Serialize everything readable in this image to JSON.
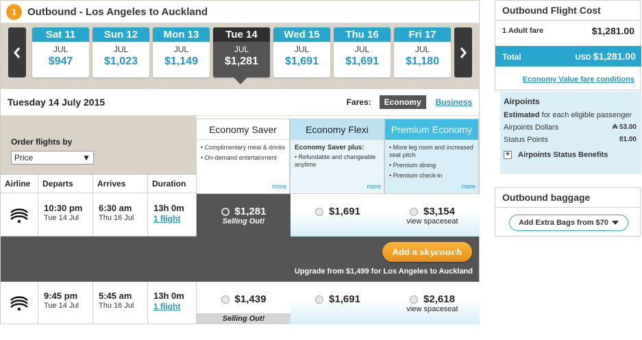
{
  "header": {
    "step": "1",
    "title": "Outbound - Los Angeles to Auckland"
  },
  "dates": [
    {
      "day": "Sat 11",
      "month": "JUL",
      "price": "$947"
    },
    {
      "day": "Sun 12",
      "month": "JUL",
      "price": "$1,023"
    },
    {
      "day": "Mon 13",
      "month": "JUL",
      "price": "$1,149"
    },
    {
      "day": "Tue 14",
      "month": "JUL",
      "price": "$1,281"
    },
    {
      "day": "Wed 15",
      "month": "JUL",
      "price": "$1,691"
    },
    {
      "day": "Thu 16",
      "month": "JUL",
      "price": "$1,691"
    },
    {
      "day": "Fri 17",
      "month": "JUL",
      "price": "$1,180"
    }
  ],
  "selected_date": "Tuesday 14 July 2015",
  "fares_label": "Fares:",
  "fares_economy": "Economy",
  "fares_business": "Business",
  "order": {
    "label": "Order flights by",
    "value": "Price"
  },
  "columns": {
    "airline": "Airline",
    "departs": "Departs",
    "arrives": "Arrives",
    "duration": "Duration"
  },
  "fare_types": [
    {
      "name": "Economy Saver",
      "plus": "",
      "items": [
        "Complimentary meal & drinks",
        "On-demand entertainment"
      ],
      "more": "more"
    },
    {
      "name": "Economy Flexi",
      "plus": "Economy Saver plus:",
      "items": [
        "Refundable and changeable anytime"
      ],
      "more": "more"
    },
    {
      "name": "Premium Economy",
      "plus": "",
      "items": [
        "More leg room and increased seat pitch",
        "Premium dining",
        "Premium check-in"
      ],
      "more": "more"
    }
  ],
  "flights": [
    {
      "depart_time": "10:30 pm",
      "depart_date": "Tue 14 Jul",
      "arrive_time": "6:30 am",
      "arrive_date": "Thu 16 Jul",
      "duration": "13h 0m",
      "flights": "1 flight",
      "saver": {
        "price": "$1,281",
        "note": "Selling Out!"
      },
      "flexi": {
        "price": "$1,691"
      },
      "premium": {
        "price": "$3,154",
        "note": "view spaceseat"
      }
    },
    {
      "depart_time": "9:45 pm",
      "depart_date": "Tue 14 Jul",
      "arrive_time": "5:45 am",
      "arrive_date": "Thu 16 Jul",
      "duration": "13h 0m",
      "flights": "1 flight",
      "saver": {
        "price": "$1,439",
        "note": "Selling Out!"
      },
      "flexi": {
        "price": "$1,691"
      },
      "premium": {
        "price": "$2,618",
        "note": "view spaceseat"
      }
    }
  ],
  "upsell": {
    "button_prefix": "Add a",
    "button_brand": "skycouch",
    "text": "Upgrade from $1,499 for Los Angeles to Auckland"
  },
  "cost": {
    "title": "Outbound Flight Cost",
    "adult_label": "1 Adult fare",
    "adult_amount": "$1,281.00",
    "total_label": "Total",
    "currency": "USD",
    "total_amount": "$1,281.00",
    "conditions": "Economy Value fare conditions"
  },
  "airpoints": {
    "title": "Airpoints",
    "est_bold": "Estimated",
    "est_rest": " for each eligible passenger",
    "dollars_label": "Airpoints Dollars",
    "dollars_value": "₳ 53.00",
    "status_label": "Status Points",
    "status_value": "81.00",
    "benefits": "Airpoints Status Benefits"
  },
  "baggage": {
    "title": "Outbound baggage",
    "button": "Add Extra Bags from $70"
  },
  "colors": {
    "accent": "#27a7cd",
    "orange": "#f39a1b",
    "dark": "#555555"
  }
}
